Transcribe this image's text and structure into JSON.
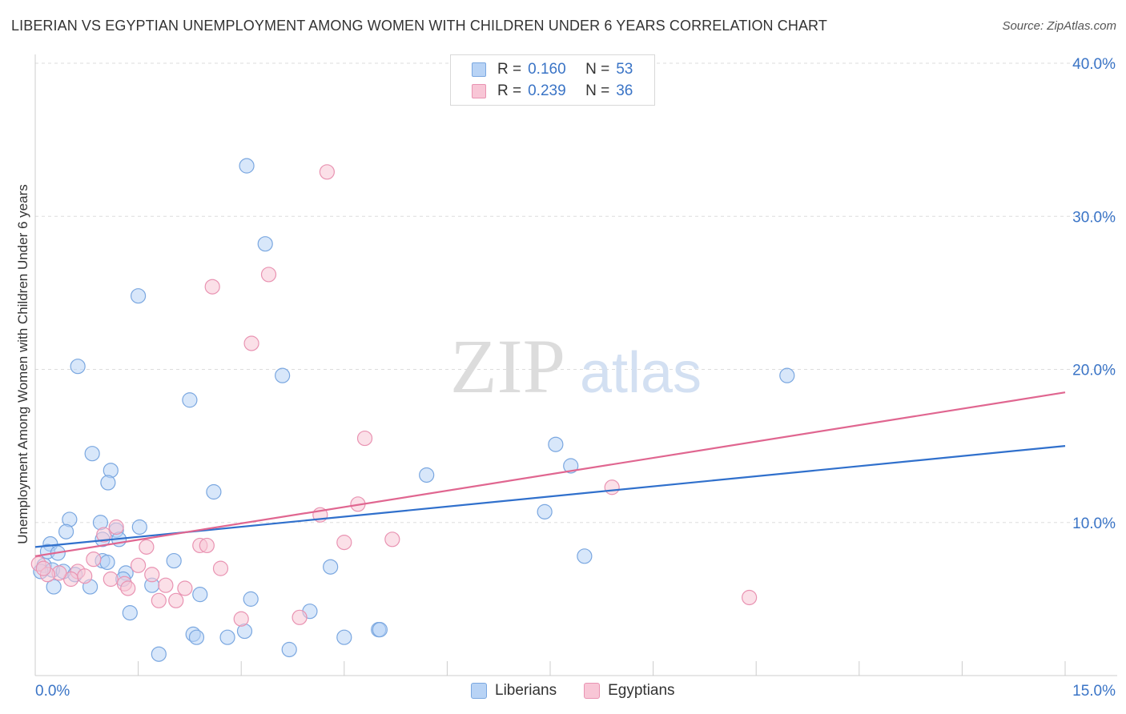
{
  "title": "LIBERIAN VS EGYPTIAN UNEMPLOYMENT AMONG WOMEN WITH CHILDREN UNDER 6 YEARS CORRELATION CHART",
  "source": "Source: ZipAtlas.com",
  "watermark": {
    "zip": "ZIP",
    "atlas": "atlas"
  },
  "legend": {
    "r_label": "R =",
    "n_label": "N =",
    "rows": [
      {
        "r": "0.160",
        "n": "53"
      },
      {
        "r": "0.239",
        "n": "36"
      }
    ]
  },
  "bottom_legend": [
    "Liberians",
    "Egyptians"
  ],
  "colors": {
    "liberians_fill": "#b8d3f5",
    "liberians_stroke": "#7aa7e0",
    "liberians_line": "#3070cc",
    "egyptians_fill": "#f8c6d6",
    "egyptians_stroke": "#e993b2",
    "egyptians_line": "#e06690",
    "tick_label": "#3a74c6",
    "grid": "#dddddd"
  },
  "chart_data": {
    "type": "scatter",
    "title": "LIBERIAN VS EGYPTIAN UNEMPLOYMENT AMONG WOMEN WITH CHILDREN UNDER 6 YEARS CORRELATION CHART",
    "xlabel": "",
    "ylabel": "Unemployment Among Women with Children Under 6 years",
    "xlim": [
      0,
      15
    ],
    "ylim": [
      0,
      40
    ],
    "x_tick_labels": [
      "0.0%",
      "15.0%"
    ],
    "y_ticks": [
      10,
      20,
      30,
      40
    ],
    "y_tick_labels": [
      "10.0%",
      "20.0%",
      "30.0%",
      "40.0%"
    ],
    "grid": true,
    "legend_position": "top-center",
    "series": [
      {
        "name": "Liberians",
        "r": 0.16,
        "n": 53,
        "trend": [
          [
            0,
            8.4
          ],
          [
            15,
            15.0
          ]
        ],
        "points": [
          [
            3.08,
            33.3
          ],
          [
            3.35,
            28.2
          ],
          [
            1.5,
            24.8
          ],
          [
            0.62,
            20.2
          ],
          [
            3.6,
            19.6
          ],
          [
            2.25,
            18.0
          ],
          [
            0.83,
            14.5
          ],
          [
            1.1,
            13.4
          ],
          [
            1.06,
            12.6
          ],
          [
            2.6,
            12.0
          ],
          [
            0.5,
            10.2
          ],
          [
            0.95,
            10.0
          ],
          [
            1.52,
            9.7
          ],
          [
            1.18,
            9.5
          ],
          [
            0.45,
            9.4
          ],
          [
            1.22,
            8.9
          ],
          [
            0.98,
            8.9
          ],
          [
            0.22,
            8.6
          ],
          [
            0.18,
            8.1
          ],
          [
            0.33,
            8.0
          ],
          [
            0.98,
            7.5
          ],
          [
            2.02,
            7.5
          ],
          [
            1.05,
            7.4
          ],
          [
            0.13,
            7.2
          ],
          [
            0.25,
            6.9
          ],
          [
            0.41,
            6.8
          ],
          [
            0.08,
            6.8
          ],
          [
            0.58,
            6.6
          ],
          [
            1.32,
            6.7
          ],
          [
            1.28,
            6.3
          ],
          [
            0.27,
            5.8
          ],
          [
            0.8,
            5.8
          ],
          [
            1.7,
            5.9
          ],
          [
            2.4,
            5.3
          ],
          [
            3.14,
            5.0
          ],
          [
            1.38,
            4.1
          ],
          [
            4.0,
            4.2
          ],
          [
            2.3,
            2.7
          ],
          [
            2.35,
            2.5
          ],
          [
            2.8,
            2.5
          ],
          [
            3.05,
            2.9
          ],
          [
            4.5,
            2.5
          ],
          [
            5.0,
            3.0
          ],
          [
            5.02,
            3.0
          ],
          [
            1.8,
            1.4
          ],
          [
            3.7,
            1.7
          ],
          [
            5.7,
            13.1
          ],
          [
            7.58,
            15.1
          ],
          [
            7.8,
            13.7
          ],
          [
            7.42,
            10.7
          ],
          [
            8.0,
            7.8
          ],
          [
            10.95,
            19.6
          ],
          [
            4.3,
            7.1
          ]
        ]
      },
      {
        "name": "Egyptians",
        "r": 0.239,
        "n": 36,
        "trend": [
          [
            0,
            7.8
          ],
          [
            15,
            18.5
          ]
        ],
        "points": [
          [
            4.25,
            32.9
          ],
          [
            3.4,
            26.2
          ],
          [
            2.58,
            25.4
          ],
          [
            3.15,
            21.7
          ],
          [
            4.8,
            15.5
          ],
          [
            8.4,
            12.3
          ],
          [
            4.7,
            11.2
          ],
          [
            4.15,
            10.5
          ],
          [
            1.18,
            9.7
          ],
          [
            1.0,
            9.2
          ],
          [
            4.5,
            8.7
          ],
          [
            5.2,
            8.9
          ],
          [
            1.62,
            8.4
          ],
          [
            2.4,
            8.5
          ],
          [
            2.5,
            8.5
          ],
          [
            0.85,
            7.6
          ],
          [
            2.7,
            7.0
          ],
          [
            0.05,
            7.3
          ],
          [
            0.62,
            6.8
          ],
          [
            1.5,
            7.2
          ],
          [
            0.52,
            6.3
          ],
          [
            0.72,
            6.5
          ],
          [
            1.1,
            6.3
          ],
          [
            1.7,
            6.6
          ],
          [
            0.35,
            6.7
          ],
          [
            0.18,
            6.6
          ],
          [
            1.3,
            6.0
          ],
          [
            1.9,
            5.9
          ],
          [
            2.18,
            5.7
          ],
          [
            1.35,
            5.7
          ],
          [
            1.8,
            4.9
          ],
          [
            2.05,
            4.9
          ],
          [
            3.0,
            3.7
          ],
          [
            3.85,
            3.8
          ],
          [
            10.4,
            5.1
          ],
          [
            0.12,
            7.0
          ]
        ]
      }
    ]
  }
}
